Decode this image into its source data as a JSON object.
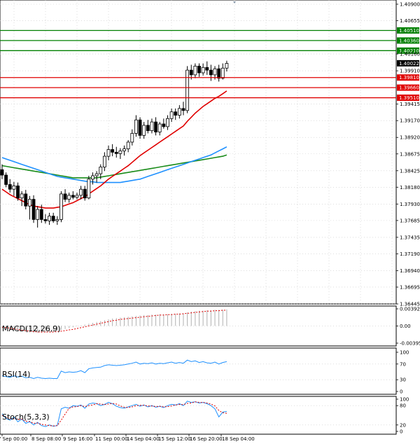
{
  "chart_data": [
    {
      "type": "candlestick",
      "title": "",
      "x_labels": [
        "7 Sep 00:00",
        "8 Sep 08:00",
        "9 Sep 16:00",
        "11 Sep 00:00",
        "14 Sep 04:00",
        "15 Sep 12:00",
        "16 Sep 20:00",
        "18 Sep 04:00"
      ],
      "y_ticks": [
        "1.40900",
        "1.40655",
        "1.40160",
        "1.39910",
        "1.39415",
        "1.39170",
        "1.38920",
        "1.38675",
        "1.38425",
        "1.38180",
        "1.37930",
        "1.37685",
        "1.37435",
        "1.37190",
        "1.36940",
        "1.36695",
        "1.36445"
      ],
      "ylim": [
        1.36445,
        1.409
      ],
      "current_price": "1.40022",
      "levels": [
        {
          "label": "1.40510",
          "value": 1.4051,
          "color": "#008000"
        },
        {
          "label": "1.40360",
          "value": 1.4036,
          "color": "#008000"
        },
        {
          "label": "1.40210",
          "value": 1.4021,
          "color": "#008000"
        },
        {
          "label": "1.39810",
          "value": 1.3981,
          "color": "#e00000"
        },
        {
          "label": "1.39660",
          "value": 1.3966,
          "color": "#e00000"
        },
        {
          "label": "1.39510",
          "value": 1.3951,
          "color": "#e00000"
        }
      ],
      "candles": [
        {
          "o": 1.3844,
          "h": 1.3852,
          "l": 1.383,
          "c": 1.3836
        },
        {
          "o": 1.3836,
          "h": 1.384,
          "l": 1.3818,
          "c": 1.3822
        },
        {
          "o": 1.3822,
          "h": 1.383,
          "l": 1.381,
          "c": 1.3815
        },
        {
          "o": 1.3815,
          "h": 1.3826,
          "l": 1.3805,
          "c": 1.382
        },
        {
          "o": 1.382,
          "h": 1.3825,
          "l": 1.3798,
          "c": 1.3802
        },
        {
          "o": 1.3802,
          "h": 1.3812,
          "l": 1.379,
          "c": 1.3808
        },
        {
          "o": 1.3808,
          "h": 1.3814,
          "l": 1.3785,
          "c": 1.379
        },
        {
          "o": 1.379,
          "h": 1.3805,
          "l": 1.377,
          "c": 1.38
        },
        {
          "o": 1.38,
          "h": 1.3806,
          "l": 1.3765,
          "c": 1.377
        },
        {
          "o": 1.377,
          "h": 1.379,
          "l": 1.3758,
          "c": 1.3785
        },
        {
          "o": 1.3785,
          "h": 1.3792,
          "l": 1.3765,
          "c": 1.377
        },
        {
          "o": 1.377,
          "h": 1.3778,
          "l": 1.3764,
          "c": 1.3768
        },
        {
          "o": 1.3768,
          "h": 1.378,
          "l": 1.3762,
          "c": 1.3775
        },
        {
          "o": 1.3775,
          "h": 1.378,
          "l": 1.3765,
          "c": 1.3768
        },
        {
          "o": 1.3768,
          "h": 1.3775,
          "l": 1.3762,
          "c": 1.377
        },
        {
          "o": 1.377,
          "h": 1.3812,
          "l": 1.3766,
          "c": 1.3808
        },
        {
          "o": 1.3808,
          "h": 1.3815,
          "l": 1.3796,
          "c": 1.38
        },
        {
          "o": 1.38,
          "h": 1.381,
          "l": 1.3795,
          "c": 1.3806
        },
        {
          "o": 1.3806,
          "h": 1.3812,
          "l": 1.38,
          "c": 1.3803
        },
        {
          "o": 1.3803,
          "h": 1.381,
          "l": 1.38,
          "c": 1.3806
        },
        {
          "o": 1.3806,
          "h": 1.382,
          "l": 1.38,
          "c": 1.3815
        },
        {
          "o": 1.3815,
          "h": 1.382,
          "l": 1.3798,
          "c": 1.3802
        },
        {
          "o": 1.3802,
          "h": 1.3835,
          "l": 1.38,
          "c": 1.383
        },
        {
          "o": 1.383,
          "h": 1.384,
          "l": 1.3822,
          "c": 1.3835
        },
        {
          "o": 1.3835,
          "h": 1.3842,
          "l": 1.3825,
          "c": 1.3838
        },
        {
          "o": 1.3838,
          "h": 1.3852,
          "l": 1.383,
          "c": 1.3848
        },
        {
          "o": 1.3848,
          "h": 1.387,
          "l": 1.3842,
          "c": 1.3864
        },
        {
          "o": 1.3864,
          "h": 1.388,
          "l": 1.3858,
          "c": 1.3874
        },
        {
          "o": 1.3874,
          "h": 1.3882,
          "l": 1.3864,
          "c": 1.387
        },
        {
          "o": 1.387,
          "h": 1.3878,
          "l": 1.3862,
          "c": 1.3868
        },
        {
          "o": 1.3868,
          "h": 1.3876,
          "l": 1.386,
          "c": 1.3872
        },
        {
          "o": 1.3872,
          "h": 1.388,
          "l": 1.3865,
          "c": 1.3875
        },
        {
          "o": 1.3875,
          "h": 1.3888,
          "l": 1.387,
          "c": 1.3885
        },
        {
          "o": 1.3885,
          "h": 1.3904,
          "l": 1.388,
          "c": 1.3898
        },
        {
          "o": 1.3898,
          "h": 1.3925,
          "l": 1.3893,
          "c": 1.3918
        },
        {
          "o": 1.3918,
          "h": 1.3922,
          "l": 1.389,
          "c": 1.3895
        },
        {
          "o": 1.3895,
          "h": 1.3915,
          "l": 1.389,
          "c": 1.391
        },
        {
          "o": 1.391,
          "h": 1.3918,
          "l": 1.3898,
          "c": 1.3902
        },
        {
          "o": 1.3902,
          "h": 1.392,
          "l": 1.3898,
          "c": 1.3915
        },
        {
          "o": 1.3915,
          "h": 1.3922,
          "l": 1.3895,
          "c": 1.39
        },
        {
          "o": 1.39,
          "h": 1.3915,
          "l": 1.3895,
          "c": 1.3912
        },
        {
          "o": 1.3912,
          "h": 1.392,
          "l": 1.3905,
          "c": 1.3908
        },
        {
          "o": 1.3908,
          "h": 1.3925,
          "l": 1.3903,
          "c": 1.392
        },
        {
          "o": 1.392,
          "h": 1.3935,
          "l": 1.3915,
          "c": 1.393
        },
        {
          "o": 1.393,
          "h": 1.3935,
          "l": 1.3918,
          "c": 1.3925
        },
        {
          "o": 1.3925,
          "h": 1.394,
          "l": 1.392,
          "c": 1.3935
        },
        {
          "o": 1.3935,
          "h": 1.3945,
          "l": 1.3925,
          "c": 1.3932
        },
        {
          "o": 1.3932,
          "h": 1.3998,
          "l": 1.3928,
          "c": 1.3992
        },
        {
          "o": 1.3992,
          "h": 1.4,
          "l": 1.3978,
          "c": 1.3985
        },
        {
          "o": 1.3985,
          "h": 1.4002,
          "l": 1.398,
          "c": 1.3998
        },
        {
          "o": 1.3998,
          "h": 1.4002,
          "l": 1.3982,
          "c": 1.3988
        },
        {
          "o": 1.3988,
          "h": 1.4002,
          "l": 1.3984,
          "c": 1.3996
        },
        {
          "o": 1.3996,
          "h": 1.4005,
          "l": 1.3985,
          "c": 1.3992
        },
        {
          "o": 1.3992,
          "h": 1.4,
          "l": 1.3976,
          "c": 1.3985
        },
        {
          "o": 1.3985,
          "h": 1.3998,
          "l": 1.3978,
          "c": 1.3994
        },
        {
          "o": 1.3994,
          "h": 1.4,
          "l": 1.3975,
          "c": 1.398
        },
        {
          "o": 1.398,
          "h": 1.4002,
          "l": 1.3978,
          "c": 1.3995
        },
        {
          "o": 1.3995,
          "h": 1.4006,
          "l": 1.399,
          "c": 1.4002
        }
      ],
      "ma_fast": {
        "color": "#e00000",
        "values": [
          1.3815,
          1.3811,
          1.3807,
          1.3804,
          1.3801,
          1.3798,
          1.3795,
          1.3792,
          1.379,
          1.3789,
          1.3788,
          1.3787,
          1.3787,
          1.3787,
          1.3788,
          1.3789,
          1.3791,
          1.3793,
          1.3795,
          1.3798,
          1.3801,
          1.3804,
          1.3808,
          1.3812,
          1.3816,
          1.382,
          1.3825,
          1.383,
          1.3834,
          1.3838,
          1.3842,
          1.3846,
          1.385,
          1.3855,
          1.386,
          1.3865,
          1.3869,
          1.3873,
          1.3877,
          1.3881,
          1.3885,
          1.3889,
          1.3893,
          1.3897,
          1.3901,
          1.3905,
          1.3909,
          1.3916,
          1.3922,
          1.3928,
          1.3933,
          1.3938,
          1.3942,
          1.3946,
          1.395,
          1.3953,
          1.3957,
          1.3961
        ]
      },
      "ma_mid": {
        "color": "#1e90ff",
        "values": [
          1.3862,
          1.386,
          1.3858,
          1.3856,
          1.3854,
          1.3852,
          1.385,
          1.3848,
          1.3846,
          1.3844,
          1.3842,
          1.384,
          1.3838,
          1.3836,
          1.3834,
          1.3833,
          1.3832,
          1.3831,
          1.383,
          1.3829,
          1.3828,
          1.3827,
          1.3826,
          1.3826,
          1.3825,
          1.3825,
          1.3825,
          1.3825,
          1.3825,
          1.3825,
          1.3825,
          1.3826,
          1.3827,
          1.3828,
          1.3829,
          1.383,
          1.3832,
          1.3834,
          1.3836,
          1.3838,
          1.384,
          1.3842,
          1.3844,
          1.3846,
          1.3848,
          1.385,
          1.3852,
          1.3854,
          1.3856,
          1.3858,
          1.386,
          1.3862,
          1.3864,
          1.3866,
          1.3869,
          1.3872,
          1.3875,
          1.3878
        ]
      },
      "ma_slow": {
        "color": "#1a8c1a",
        "values": [
          1.385,
          1.3849,
          1.3848,
          1.3847,
          1.3846,
          1.3845,
          1.3844,
          1.3843,
          1.3842,
          1.3841,
          1.384,
          1.3839,
          1.3838,
          1.3837,
          1.3836,
          1.3835,
          1.3834,
          1.3833,
          1.3832,
          1.3832,
          1.3832,
          1.3832,
          1.3832,
          1.3832,
          1.3832,
          1.3833,
          1.3834,
          1.3835,
          1.3836,
          1.3837,
          1.3838,
          1.3839,
          1.384,
          1.3841,
          1.3842,
          1.3843,
          1.3844,
          1.3845,
          1.3846,
          1.3847,
          1.3848,
          1.3849,
          1.385,
          1.3851,
          1.3852,
          1.3853,
          1.3854,
          1.3855,
          1.3856,
          1.3857,
          1.3858,
          1.3859,
          1.386,
          1.3861,
          1.3862,
          1.3863,
          1.3864,
          1.3866
        ]
      }
    },
    {
      "type": "histogram",
      "title": "MACD(12,26,9)",
      "y_ticks": [
        "0.003925",
        "0.00",
        "-0.003958"
      ],
      "ylim": [
        -0.003958,
        0.003925
      ],
      "values": [
        -0.0004,
        -0.0006,
        -0.0008,
        -0.001,
        -0.0012,
        -0.0013,
        -0.0014,
        -0.0015,
        -0.0016,
        -0.0016,
        -0.0016,
        -0.0015,
        -0.0014,
        -0.0013,
        -0.0011,
        -0.0009,
        -0.0007,
        -0.0005,
        -0.0003,
        -0.0001,
        0.0001,
        0.0003,
        0.0005,
        0.0007,
        0.0009,
        0.0011,
        0.0013,
        0.0015,
        0.0017,
        0.0018,
        0.0019,
        0.002,
        0.0021,
        0.0022,
        0.0023,
        0.0024,
        0.0025,
        0.0025,
        0.0026,
        0.0026,
        0.0027,
        0.0027,
        0.0027,
        0.0028,
        0.0028,
        0.0029,
        0.0029,
        0.0031,
        0.0033,
        0.0034,
        0.0035,
        0.0035,
        0.0036,
        0.0036,
        0.0037,
        0.0037,
        0.0037,
        0.0038
      ],
      "signal": [
        -0.0003,
        -0.0004,
        -0.0005,
        -0.0007,
        -0.0008,
        -0.001,
        -0.0011,
        -0.0012,
        -0.0013,
        -0.0014,
        -0.0014,
        -0.0014,
        -0.0014,
        -0.0014,
        -0.0013,
        -0.0012,
        -0.0011,
        -0.0009,
        -0.0008,
        -0.0006,
        -0.0004,
        -0.0002,
        0.0,
        0.0002,
        0.0004,
        0.0006,
        0.0008,
        0.001,
        0.0012,
        0.0013,
        0.0015,
        0.0016,
        0.0017,
        0.0018,
        0.0019,
        0.002,
        0.0021,
        0.0022,
        0.0023,
        0.0024,
        0.0025,
        0.0025,
        0.0026,
        0.0026,
        0.0027,
        0.0027,
        0.0028,
        0.0029,
        0.003,
        0.0031,
        0.0032,
        0.0033,
        0.0034,
        0.0034,
        0.0035,
        0.0035,
        0.0036,
        0.0036
      ]
    },
    {
      "type": "line",
      "title": "RSI(14)",
      "y_ticks": [
        "100",
        "70",
        "30",
        "0"
      ],
      "ylim": [
        0,
        100
      ],
      "values": [
        40,
        38,
        36,
        40,
        37,
        39,
        35,
        36,
        33,
        36,
        34,
        33,
        34,
        33,
        33,
        52,
        48,
        50,
        49,
        50,
        53,
        48,
        58,
        60,
        61,
        62,
        66,
        68,
        67,
        66,
        67,
        68,
        70,
        72,
        75,
        70,
        72,
        71,
        73,
        70,
        72,
        71,
        73,
        75,
        72,
        74,
        72,
        80,
        76,
        78,
        74,
        76,
        73,
        72,
        75,
        70,
        74,
        76
      ]
    },
    {
      "type": "line",
      "title": "Stoch(5,3,3)",
      "y_ticks": [
        "100",
        "80",
        "20",
        "0"
      ],
      "ylim": [
        0,
        100
      ],
      "k": [
        55,
        40,
        35,
        45,
        30,
        38,
        25,
        30,
        20,
        28,
        18,
        15,
        20,
        16,
        18,
        70,
        75,
        72,
        80,
        78,
        82,
        72,
        85,
        88,
        86,
        80,
        84,
        90,
        86,
        78,
        74,
        72,
        76,
        80,
        84,
        78,
        82,
        76,
        80,
        75,
        78,
        74,
        80,
        84,
        82,
        86,
        80,
        94,
        90,
        92,
        88,
        90,
        86,
        80,
        70,
        45,
        60,
        62
      ],
      "d": [
        50,
        45,
        40,
        40,
        37,
        38,
        31,
        31,
        25,
        26,
        22,
        20,
        18,
        17,
        18,
        35,
        54,
        72,
        76,
        77,
        80,
        77,
        80,
        82,
        86,
        85,
        83,
        85,
        87,
        85,
        79,
        75,
        74,
        76,
        80,
        81,
        81,
        79,
        79,
        77,
        78,
        76,
        77,
        79,
        82,
        84,
        83,
        87,
        88,
        92,
        90,
        90,
        88,
        85,
        79,
        65,
        58,
        56
      ]
    }
  ]
}
